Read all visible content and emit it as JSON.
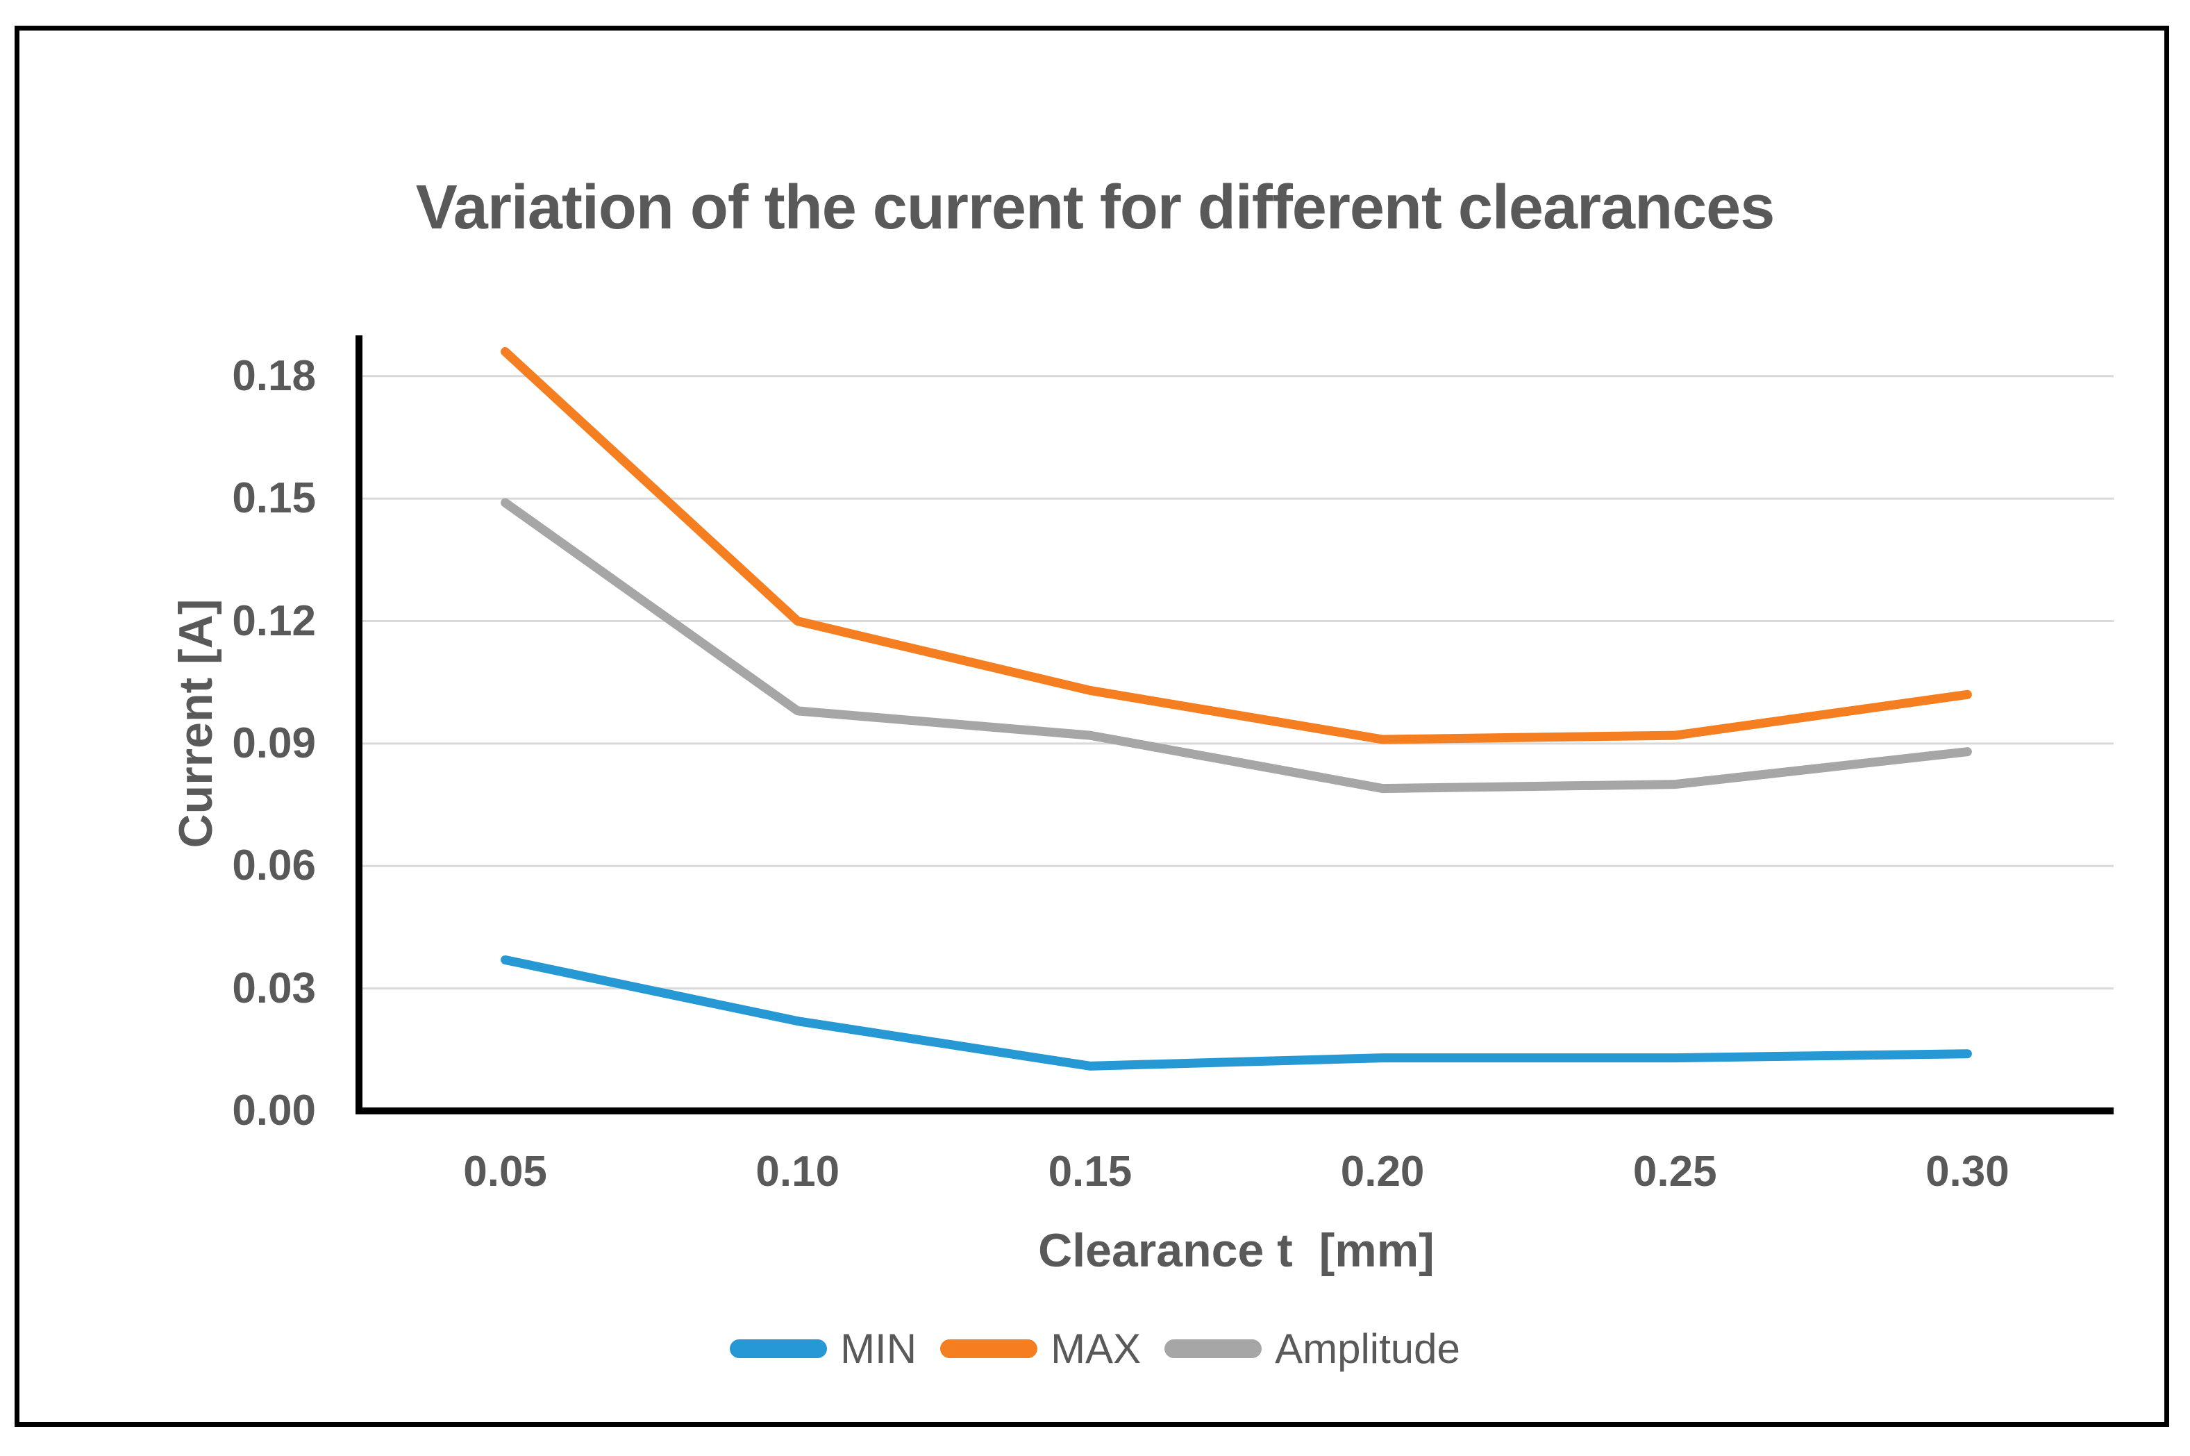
{
  "chart_data": {
    "type": "line",
    "title": "Variation of the current for different clearances",
    "xlabel": "Clearance t  [mm]",
    "ylabel": "Current [A]",
    "categories": [
      "0.05",
      "0.10",
      "0.15",
      "0.20",
      "0.25",
      "0.30"
    ],
    "x_numeric": [
      0.05,
      0.1,
      0.15,
      0.2,
      0.25,
      0.3
    ],
    "series": [
      {
        "name": "MIN",
        "color": "#2698D4",
        "values": [
          0.037,
          0.022,
          0.011,
          0.013,
          0.013,
          0.014
        ]
      },
      {
        "name": "MAX",
        "color": "#F57E21",
        "values": [
          0.186,
          0.12,
          0.103,
          0.091,
          0.092,
          0.102
        ]
      },
      {
        "name": "Amplitude",
        "color": "#A6A6A6",
        "values": [
          0.149,
          0.098,
          0.092,
          0.079,
          0.08,
          0.088
        ]
      }
    ],
    "ylim": [
      0,
      0.19
    ],
    "ytick_step": 0.03,
    "yticks": [
      "0.00",
      "0.03",
      "0.06",
      "0.09",
      "0.12",
      "0.15",
      "0.18"
    ],
    "grid": "horizontal-major",
    "legend_position": "bottom",
    "legend_order": [
      "MIN",
      "MAX",
      "Amplitude"
    ],
    "colors": {
      "text": "#595959",
      "gridline": "#D9D9D9",
      "axis": "#000000",
      "frame_border": "#000000",
      "background": "#FFFFFF"
    }
  }
}
